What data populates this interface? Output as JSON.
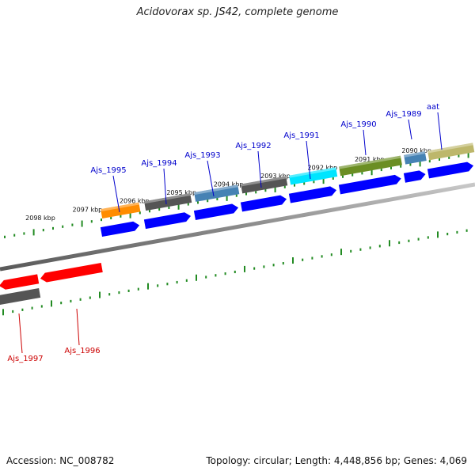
{
  "title": "Acidovorax sp. JS42, complete genome",
  "footer": {
    "accession": "Accession: NC_008782",
    "topology": "Topology: circular; Length: 4,448,856 bp; Genes: 4,069"
  },
  "scale": {
    "unit": "kbp",
    "labels": [
      "2098 kbp",
      "2097 kbp",
      "2096 kbp",
      "2095 kbp",
      "2094 kbp",
      "2093 kbp",
      "2092 kbp",
      "2091 kbp",
      "2090 kbp"
    ]
  },
  "genes_forward": [
    {
      "name": "Ajs_1995",
      "color": "#ff8c00"
    },
    {
      "name": "Ajs_1994",
      "color": "#555555"
    },
    {
      "name": "Ajs_1993",
      "color": "#4682b4"
    },
    {
      "name": "Ajs_1992",
      "color": "#555555"
    },
    {
      "name": "Ajs_1991",
      "color": "#00e5ff"
    },
    {
      "name": "Ajs_1990",
      "color": "#6b8e23"
    },
    {
      "name": "Ajs_1989",
      "color": "#4682b4"
    },
    {
      "name": "aat",
      "color": "#bdb76b"
    }
  ],
  "genes_reverse": [
    {
      "name": "Ajs_1996",
      "color": "#ff0000"
    },
    {
      "name": "Ajs_1997",
      "color": "#ff0000"
    }
  ],
  "colors": {
    "forward_label": "#0000cc",
    "reverse_label": "#cc0000",
    "cds": "#0000ff",
    "ticks": "#228b22",
    "backbone": "#888888"
  }
}
